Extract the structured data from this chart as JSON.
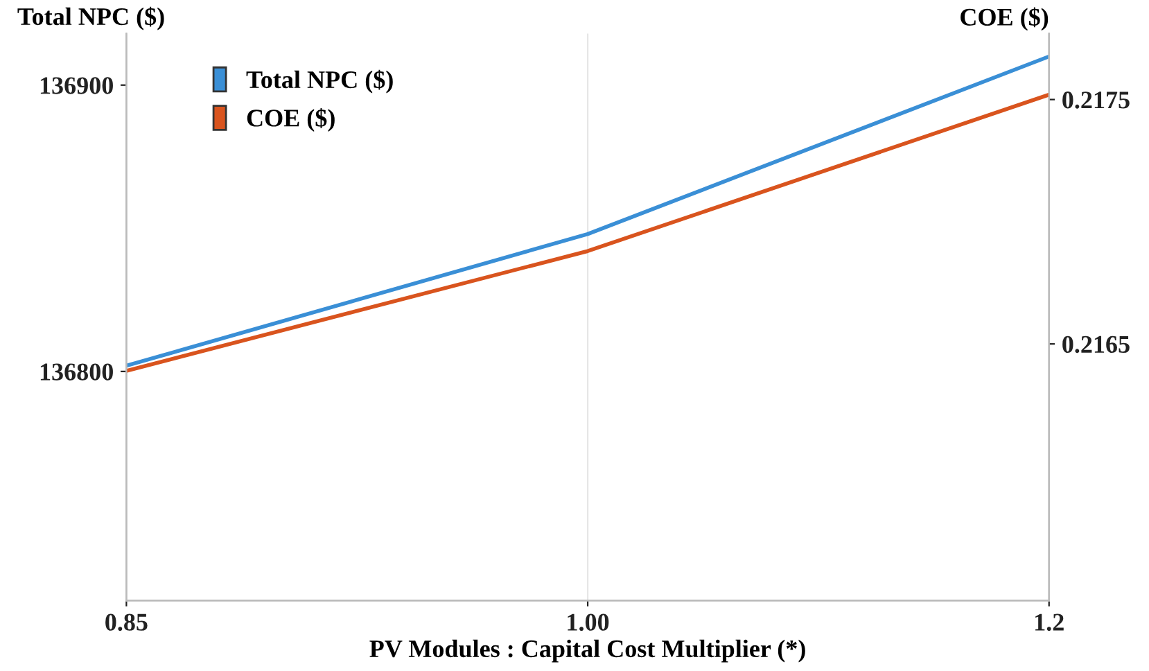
{
  "chart_data": {
    "type": "line",
    "xlabel": "PV Modules : Capital Cost Multiplier (*)",
    "ylabel": "Total NPC ($)",
    "y2label": "COE ($)",
    "categories": [
      "0.85",
      "1.00",
      "1.2"
    ],
    "series": [
      {
        "name": "Total NPC ($)",
        "color": "#3a8fd6",
        "values": [
          136802,
          136848,
          136910
        ]
      },
      {
        "name": "COE ($)",
        "color": "#d9541e",
        "values": [
          0.21639,
          0.21688,
          0.21752
        ],
        "axis": "y2"
      }
    ],
    "ylim": [
      136720,
      136918
    ],
    "yticks": [
      136800,
      136900
    ],
    "y2lim": [
      0.21545,
      0.21777
    ],
    "y2ticks": [
      0.2165,
      0.2175
    ],
    "grid": "x",
    "legend": "top left",
    "marker": "none",
    "line_style": "solid"
  }
}
